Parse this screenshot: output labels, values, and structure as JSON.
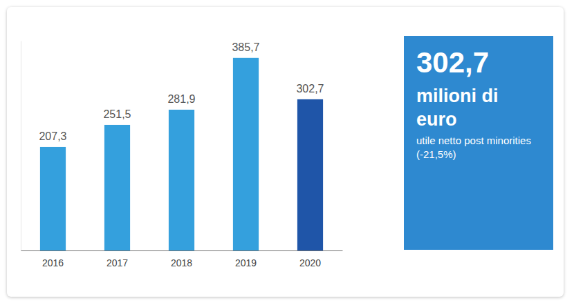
{
  "chart_data": {
    "type": "bar",
    "categories": [
      "2016",
      "2017",
      "2018",
      "2019",
      "2020"
    ],
    "values": [
      207.3,
      251.5,
      281.9,
      385.7,
      302.7
    ],
    "value_labels": [
      "207,3",
      "251,5",
      "281,9",
      "385,7",
      "302,7"
    ],
    "colors": [
      "#34a0dd",
      "#34a0dd",
      "#34a0dd",
      "#34a0dd",
      "#1f55a8"
    ],
    "color": "#2e89d0",
    "ylim": [
      0,
      420
    ],
    "data_labels": true,
    "tick_labels": "x",
    "annotations": [
      "302,7",
      "milioni di euro",
      "utile netto post minorities (-21,5%)"
    ]
  }
}
